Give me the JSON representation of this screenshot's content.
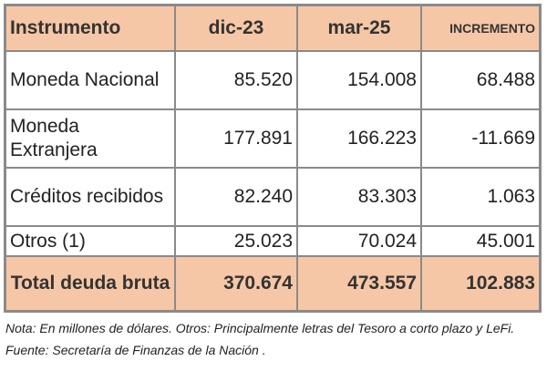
{
  "table": {
    "header": [
      "Instrumento",
      "dic-23",
      "mar-25",
      "INCREMENTO"
    ],
    "rows": [
      [
        "Moneda Nacional",
        "85.520",
        "154.008",
        "68.488"
      ],
      [
        "Moneda Extranjera",
        "177.891",
        "166.223",
        "-11.669"
      ],
      [
        "Créditos recibidos",
        "82.240",
        "83.303",
        "1.063"
      ],
      [
        "Otros (1)",
        "25.023",
        "70.024",
        "45.001"
      ]
    ],
    "total": [
      "Total deuda bruta",
      "370.674",
      "473.557",
      "102.883"
    ]
  },
  "note": "Nota: En millones de dólares. Otros: Principalmente letras del Tesoro a corto plazo y LeFi. Fuente:  Secretaría de Finanzas de la Nación ."
}
